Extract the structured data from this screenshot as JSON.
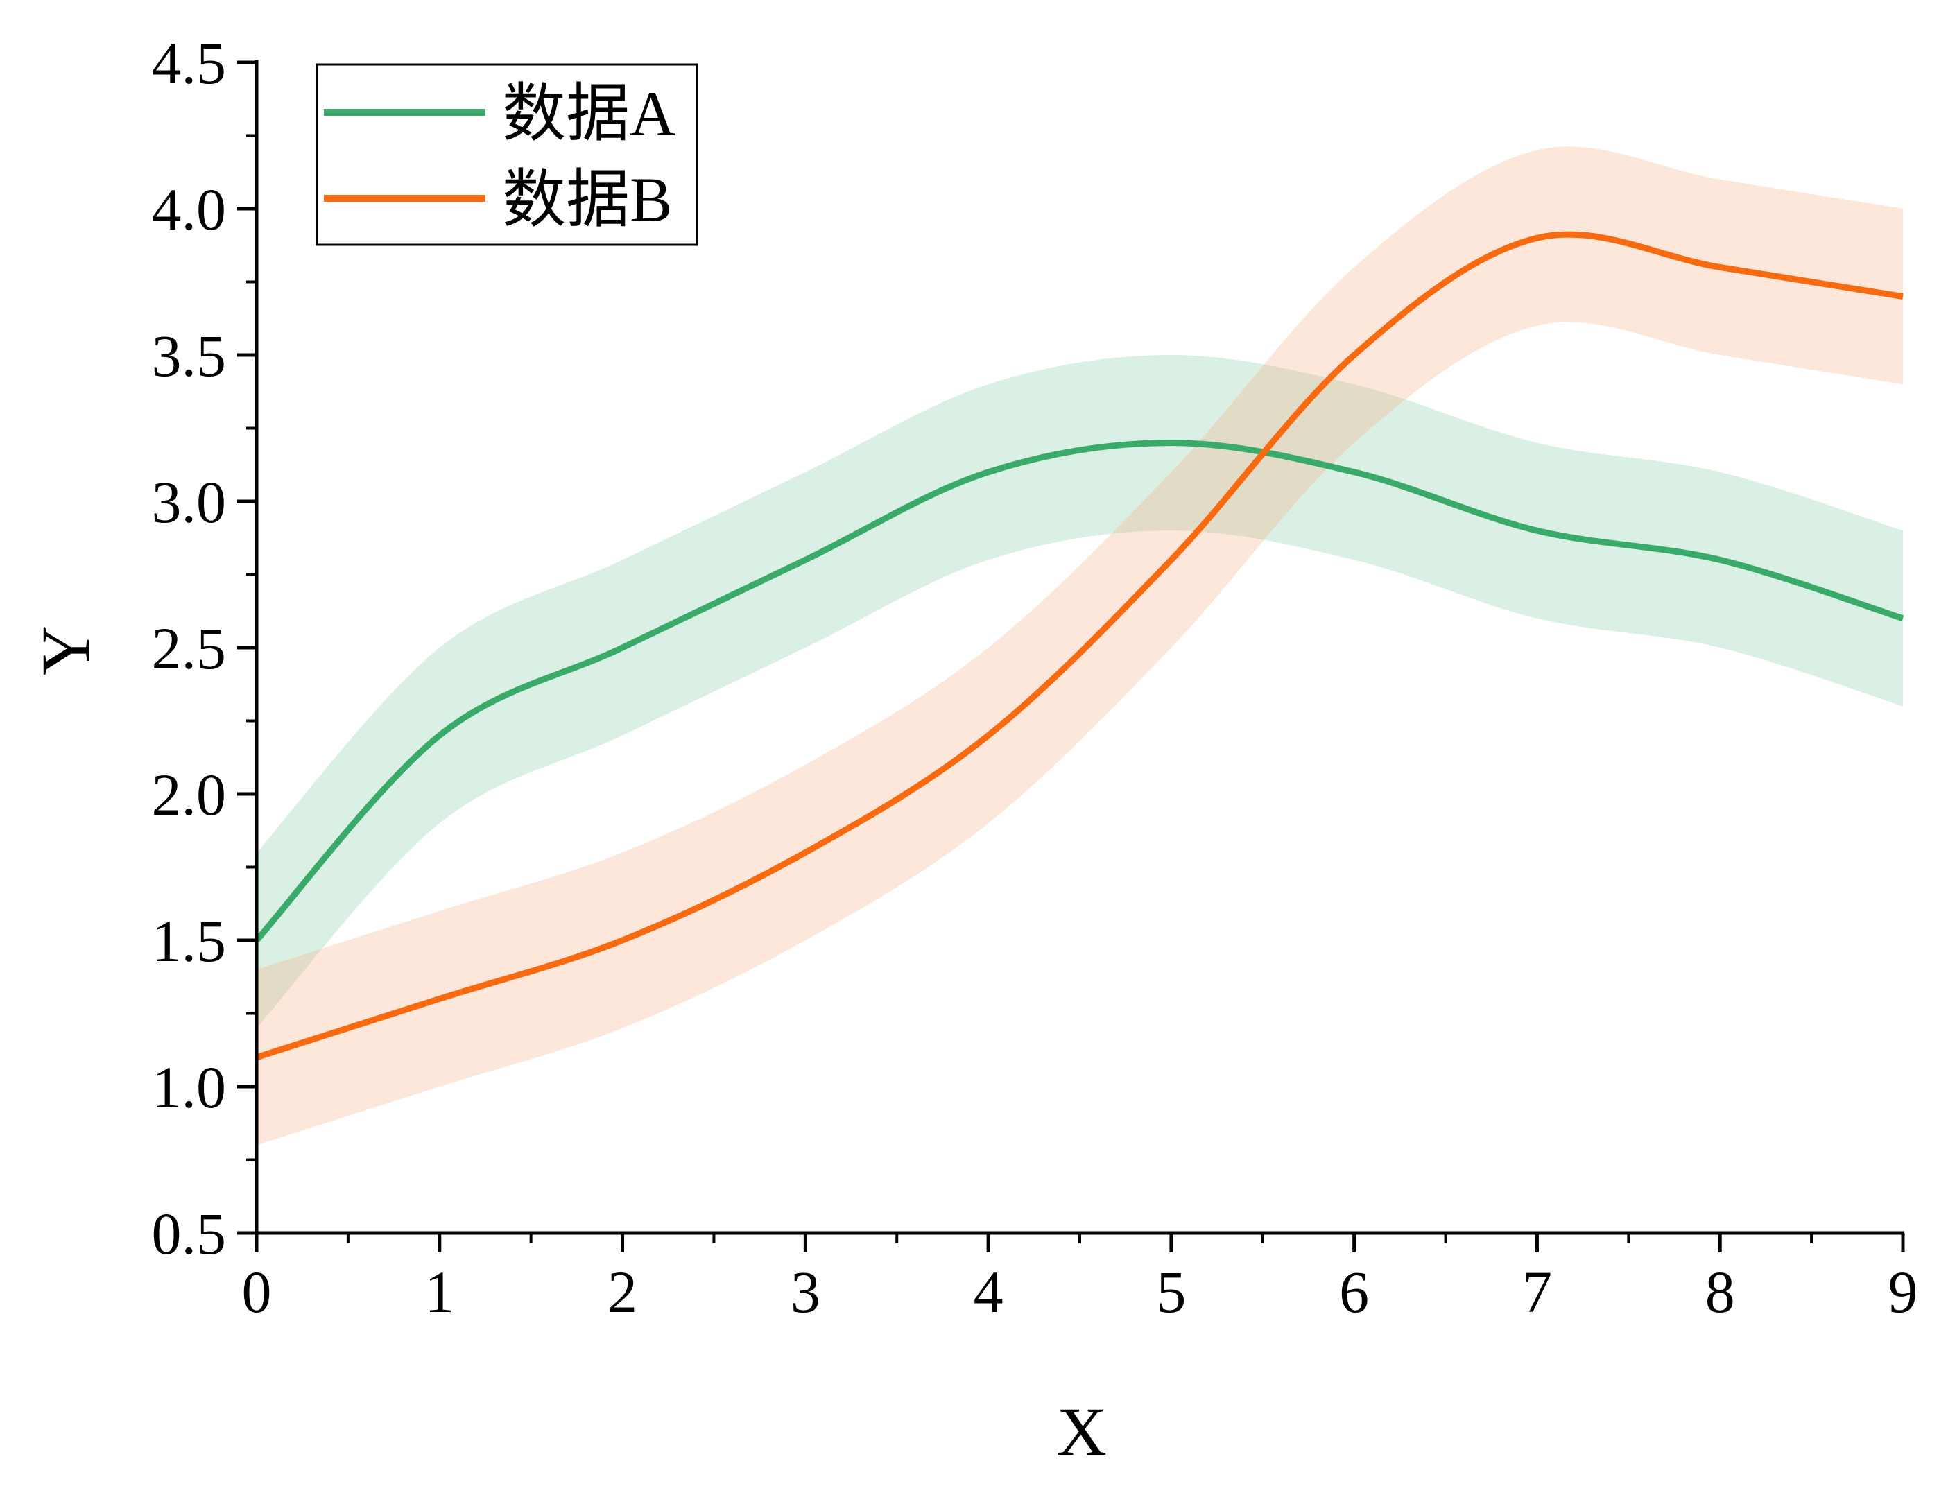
{
  "chart_data": {
    "type": "line",
    "xlabel": "X",
    "ylabel": "Y",
    "xlim": [
      0,
      9
    ],
    "ylim": [
      0.5,
      4.5
    ],
    "x_ticks": [
      0,
      1,
      2,
      3,
      4,
      5,
      6,
      7,
      8,
      9
    ],
    "y_ticks": [
      0.5,
      1.0,
      1.5,
      2.0,
      2.5,
      3.0,
      3.5,
      4.0,
      4.5
    ],
    "x_tick_labels": [
      "0",
      "1",
      "2",
      "3",
      "4",
      "5",
      "6",
      "7",
      "8",
      "9"
    ],
    "y_tick_labels": [
      "0.5",
      "1.0",
      "1.5",
      "2.0",
      "2.5",
      "3.0",
      "3.5",
      "4.0",
      "4.5"
    ],
    "grid": false,
    "legend_position": "top-left",
    "band_halfwidth": 0.3,
    "x": [
      0,
      1,
      2,
      3,
      4,
      5,
      6,
      7,
      8,
      9
    ],
    "series": [
      {
        "name": "数据A",
        "color": "#3aaa6a",
        "band_color": "#3aaa6a",
        "values": [
          1.5,
          2.2,
          2.5,
          2.8,
          3.1,
          3.2,
          3.1,
          2.9,
          2.8,
          2.6
        ]
      },
      {
        "name": "数据B",
        "color": "#f76a10",
        "band_color": "#f9a06a",
        "values": [
          1.1,
          1.3,
          1.5,
          1.8,
          2.2,
          2.8,
          3.5,
          3.9,
          3.8,
          3.7
        ]
      }
    ]
  }
}
